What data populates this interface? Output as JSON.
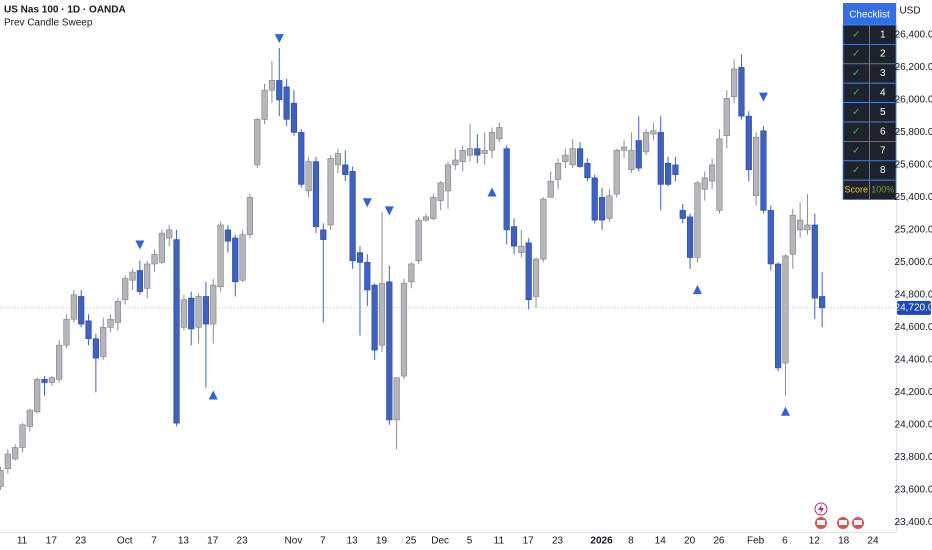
{
  "chart_data": {
    "type": "candlestick",
    "title": "US Nas 100 · 1D · OANDA",
    "subtitle": "Prev Candle Sweep",
    "currency": "USD",
    "up_color": "#b4b6bb",
    "down_color": "#3f62c1",
    "ylim": [
      23340,
      26615
    ],
    "yticks": [
      {
        "value": 23400,
        "label": "23,400.0"
      },
      {
        "value": 23600,
        "label": "23,600.0"
      },
      {
        "value": 23800,
        "label": "23,800.0"
      },
      {
        "value": 24000,
        "label": "24,000.0"
      },
      {
        "value": 24200,
        "label": "24,200.0"
      },
      {
        "value": 24400,
        "label": "24,400.0"
      },
      {
        "value": 24600,
        "label": "24,600.0"
      },
      {
        "value": 24800,
        "label": "24,800.0"
      },
      {
        "value": 25000,
        "label": "25,000.0"
      },
      {
        "value": 25200,
        "label": "25,200.0"
      },
      {
        "value": 25400,
        "label": "25,400.0"
      },
      {
        "value": 25600,
        "label": "25,600.0"
      },
      {
        "value": 25800,
        "label": "25,800.0"
      },
      {
        "value": 26000,
        "label": "26,000.0"
      },
      {
        "value": 26200,
        "label": "26,200.0"
      },
      {
        "value": 26400,
        "label": "26,400.0"
      }
    ],
    "last_price": {
      "value": 24720,
      "label": "24,720.0"
    },
    "categories": [
      null,
      null,
      null,
      "11",
      null,
      null,
      null,
      "17",
      null,
      null,
      null,
      "23",
      null,
      null,
      null,
      null,
      null,
      "Oct",
      null,
      null,
      null,
      "7",
      null,
      null,
      null,
      "13",
      null,
      null,
      null,
      "17",
      null,
      null,
      null,
      "23",
      null,
      null,
      null,
      null,
      null,
      null,
      "Nov",
      null,
      null,
      null,
      "7",
      null,
      null,
      null,
      "13",
      null,
      null,
      null,
      "19",
      null,
      null,
      null,
      "25",
      null,
      null,
      null,
      "Dec",
      null,
      null,
      null,
      "5",
      null,
      null,
      null,
      "11",
      null,
      null,
      null,
      "17",
      null,
      null,
      null,
      "23",
      null,
      null,
      null,
      null,
      null,
      "2026",
      null,
      null,
      null,
      "8",
      null,
      null,
      null,
      "14",
      null,
      null,
      null,
      "20",
      null,
      null,
      null,
      "26",
      null,
      null,
      null,
      null,
      "Feb",
      null,
      null,
      null,
      "6",
      null,
      null,
      null,
      "12",
      null,
      null,
      null,
      "18",
      null,
      null,
      null,
      "24",
      null,
      null
    ],
    "open": [
      23620,
      23730,
      23790,
      23860,
      23990,
      24080,
      24280,
      24260,
      24280,
      24490,
      24650,
      24790,
      24640,
      24530,
      24420,
      24600,
      24630,
      24770,
      24890,
      24950,
      24840,
      24990,
      25000,
      25150,
      25140,
      24600,
      24780,
      24600,
      24790,
      24620,
      24850,
      25200,
      25150,
      24890,
      25170,
      25600,
      25880,
      26060,
      26120,
      26080,
      25980,
      25800,
      25440,
      25620,
      25200,
      25230,
      25600,
      25600,
      25560,
      25060,
      25000,
      24860,
      24490,
      24880,
      24030,
      24300,
      24880,
      25010,
      25260,
      25270,
      25380,
      25440,
      25600,
      25620,
      25660,
      25700,
      25670,
      25690,
      25760,
      25700,
      25220,
      25060,
      25120,
      24790,
      25020,
      25400,
      25510,
      25620,
      25600,
      25700,
      25610,
      25520,
      25400,
      25270,
      25420,
      25690,
      25570,
      25750,
      25680,
      25790,
      25800,
      25610,
      25600,
      25320,
      25280,
      25030,
      25450,
      25500,
      25320,
      25780,
      26020,
      26200,
      25900,
      25410,
      25810,
      25320,
      24990,
      24380,
      25050,
      25200,
      25200,
      25230,
      24790,
      null,
      null,
      null,
      null,
      null,
      null,
      null,
      null,
      null
    ],
    "high": [
      23740,
      23850,
      23880,
      24010,
      24100,
      24290,
      24300,
      24300,
      24520,
      24680,
      24830,
      24830,
      24680,
      24560,
      24660,
      24680,
      24780,
      24920,
      24960,
      25010,
      25010,
      25080,
      25200,
      25230,
      25200,
      24800,
      24820,
      24810,
      24880,
      24900,
      25250,
      25230,
      25170,
      25200,
      25420,
      25890,
      26100,
      26240,
      26320,
      26130,
      26060,
      25820,
      25650,
      25650,
      25240,
      25660,
      25700,
      25690,
      25590,
      25100,
      25050,
      24870,
      25310,
      24980,
      24290,
      24900,
      25000,
      25280,
      25300,
      25420,
      25500,
      25620,
      25700,
      25720,
      25850,
      25790,
      25800,
      25830,
      25860,
      25720,
      25270,
      25200,
      25150,
      25030,
      25400,
      25560,
      25640,
      25700,
      25760,
      25740,
      25640,
      25540,
      25460,
      25450,
      25700,
      25750,
      25800,
      25900,
      25820,
      25860,
      25900,
      25650,
      25650,
      25360,
      25300,
      25500,
      25560,
      25640,
      25820,
      26060,
      26250,
      26280,
      25930,
      25800,
      25840,
      25350,
      25000,
      25050,
      25330,
      25370,
      25420,
      25300,
      24940,
      null,
      null,
      null,
      null,
      null,
      null,
      null,
      null,
      null
    ],
    "low": [
      23600,
      23700,
      23780,
      23830,
      23960,
      24070,
      24180,
      24240,
      24260,
      24470,
      24630,
      24600,
      24490,
      24200,
      24400,
      24570,
      24580,
      24740,
      24830,
      24800,
      24780,
      24940,
      24990,
      25100,
      23990,
      24580,
      24490,
      24500,
      24230,
      24500,
      24820,
      25060,
      24790,
      24880,
      25150,
      25580,
      25850,
      25980,
      25900,
      25840,
      25780,
      25460,
      25400,
      25180,
      24630,
      25200,
      25550,
      25500,
      24960,
      24550,
      24730,
      24400,
      24450,
      24000,
      23850,
      24280,
      24840,
      24990,
      25250,
      25260,
      25320,
      25330,
      25570,
      25560,
      25620,
      25610,
      25600,
      25640,
      25740,
      25110,
      25050,
      25030,
      24710,
      24720,
      25000,
      25400,
      25450,
      25580,
      25580,
      25580,
      25500,
      25240,
      25200,
      25250,
      25400,
      25640,
      25550,
      25560,
      25660,
      25750,
      25320,
      25470,
      25500,
      25240,
      24960,
      25000,
      25380,
      25450,
      25300,
      25700,
      25980,
      25880,
      25500,
      25350,
      25300,
      24950,
      24330,
      24180,
      24960,
      25150,
      25170,
      24650,
      24600,
      null,
      null,
      null,
      null,
      null,
      null,
      null,
      null,
      null
    ],
    "close": [
      23720,
      23820,
      23860,
      24000,
      24090,
      24280,
      24260,
      24290,
      24490,
      24650,
      24800,
      24620,
      24530,
      24410,
      24600,
      24650,
      24760,
      24900,
      24940,
      24820,
      24990,
      25050,
      25180,
      25200,
      24010,
      24770,
      24590,
      24790,
      24620,
      24860,
      25230,
      25130,
      24880,
      25170,
      25400,
      25880,
      26060,
      26120,
      26000,
      25880,
      25800,
      25480,
      25620,
      25220,
      25140,
      25640,
      25670,
      25540,
      25010,
      25000,
      24830,
      24460,
      24870,
      24030,
      24290,
      24870,
      24990,
      25260,
      25280,
      25400,
      25490,
      25600,
      25630,
      25690,
      25700,
      25660,
      25690,
      25800,
      25830,
      25200,
      25100,
      25100,
      24770,
      25020,
      25390,
      25500,
      25610,
      25660,
      25700,
      25590,
      25520,
      25260,
      25260,
      25410,
      25690,
      25710,
      25690,
      25580,
      25800,
      25810,
      25480,
      25480,
      25540,
      25270,
      25030,
      25490,
      25520,
      25600,
      25760,
      26010,
      26190,
      25900,
      25570,
      25770,
      25320,
      24990,
      24350,
      25040,
      25290,
      25260,
      25230,
      24780,
      24720,
      null,
      null,
      null,
      null,
      null,
      null,
      null,
      null,
      null
    ],
    "signal_color": "#2f63d8",
    "signals": [
      {
        "category": 19,
        "price": 25110,
        "direction": "down"
      },
      {
        "category": 38,
        "price": 26380,
        "direction": "down"
      },
      {
        "category": 50,
        "price": 25370,
        "direction": "down"
      },
      {
        "category": 53,
        "price": 25320,
        "direction": "down"
      },
      {
        "category": 104,
        "price": 26020,
        "direction": "down"
      },
      {
        "category": 29,
        "price": 24180,
        "direction": "up"
      },
      {
        "category": 67,
        "price": 25430,
        "direction": "up"
      },
      {
        "category": 95,
        "price": 24830,
        "direction": "up"
      },
      {
        "category": 107,
        "price": 24080,
        "direction": "up"
      }
    ]
  },
  "checklist": {
    "header": "Checklist",
    "rows": [
      {
        "check": "✓",
        "label": "1"
      },
      {
        "check": "✓",
        "label": "2"
      },
      {
        "check": "✓",
        "label": "3"
      },
      {
        "check": "✓",
        "label": "4"
      },
      {
        "check": "✓",
        "label": "5"
      },
      {
        "check": "✓",
        "label": "6"
      },
      {
        "check": "✓",
        "label": "7"
      },
      {
        "check": "✓",
        "label": "8"
      }
    ],
    "score_label": "Score",
    "score": "100%"
  }
}
